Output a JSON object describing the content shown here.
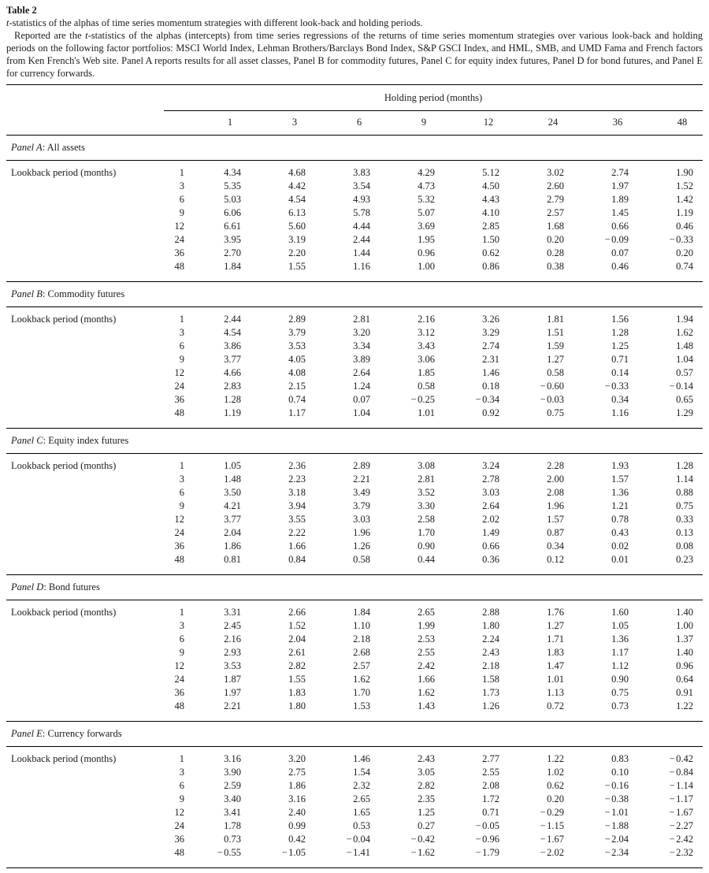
{
  "header": {
    "title": "Table 2",
    "subtitle_segments": [
      {
        "t": "t",
        "i": true
      },
      {
        "t": "-statistics of the alphas of time series momentum strategies with different look-back and holding periods.",
        "i": false
      }
    ],
    "description_segments": [
      {
        "t": "Reported are the ",
        "i": false
      },
      {
        "t": "t",
        "i": true
      },
      {
        "t": "-statistics of the alphas (intercepts) from time series regressions of the returns of time series momentum strategies over various look-back and holding periods on the following factor portfolios: MSCI World Index, Lehman Brothers/Barclays Bond Index, S&P GSCI Index, and HML, SMB, and UMD Fama and French factors from Ken French's Web site. Panel A reports results for all asset classes, Panel B for commodity futures, Panel C for equity index futures, Panel D for bond futures, and Panel E for currency forwards.",
        "i": false
      }
    ]
  },
  "table": {
    "holding_period_label": "Holding period (months)",
    "holding_periods": [
      "1",
      "3",
      "6",
      "9",
      "12",
      "24",
      "36",
      "48"
    ],
    "lookback_label": "Lookback period (months)",
    "lookback_periods": [
      "1",
      "3",
      "6",
      "9",
      "12",
      "24",
      "36",
      "48"
    ],
    "panels": [
      {
        "name": "Panel A",
        "title": "All assets",
        "rows": [
          [
            4.34,
            4.68,
            3.83,
            4.29,
            5.12,
            3.02,
            2.74,
            1.9
          ],
          [
            5.35,
            4.42,
            3.54,
            4.73,
            4.5,
            2.6,
            1.97,
            1.52
          ],
          [
            5.03,
            4.54,
            4.93,
            5.32,
            4.43,
            2.79,
            1.89,
            1.42
          ],
          [
            6.06,
            6.13,
            5.78,
            5.07,
            4.1,
            2.57,
            1.45,
            1.19
          ],
          [
            6.61,
            5.6,
            4.44,
            3.69,
            2.85,
            1.68,
            0.66,
            0.46
          ],
          [
            3.95,
            3.19,
            2.44,
            1.95,
            1.5,
            0.2,
            -0.09,
            -0.33
          ],
          [
            2.7,
            2.2,
            1.44,
            0.96,
            0.62,
            0.28,
            0.07,
            0.2
          ],
          [
            1.84,
            1.55,
            1.16,
            1.0,
            0.86,
            0.38,
            0.46,
            0.74
          ]
        ]
      },
      {
        "name": "Panel B",
        "title": "Commodity futures",
        "rows": [
          [
            2.44,
            2.89,
            2.81,
            2.16,
            3.26,
            1.81,
            1.56,
            1.94
          ],
          [
            4.54,
            3.79,
            3.2,
            3.12,
            3.29,
            1.51,
            1.28,
            1.62
          ],
          [
            3.86,
            3.53,
            3.34,
            3.43,
            2.74,
            1.59,
            1.25,
            1.48
          ],
          [
            3.77,
            4.05,
            3.89,
            3.06,
            2.31,
            1.27,
            0.71,
            1.04
          ],
          [
            4.66,
            4.08,
            2.64,
            1.85,
            1.46,
            0.58,
            0.14,
            0.57
          ],
          [
            2.83,
            2.15,
            1.24,
            0.58,
            0.18,
            -0.6,
            -0.33,
            -0.14
          ],
          [
            1.28,
            0.74,
            0.07,
            -0.25,
            -0.34,
            -0.03,
            0.34,
            0.65
          ],
          [
            1.19,
            1.17,
            1.04,
            1.01,
            0.92,
            0.75,
            1.16,
            1.29
          ]
        ]
      },
      {
        "name": "Panel C",
        "title": "Equity index futures",
        "rows": [
          [
            1.05,
            2.36,
            2.89,
            3.08,
            3.24,
            2.28,
            1.93,
            1.28
          ],
          [
            1.48,
            2.23,
            2.21,
            2.81,
            2.78,
            2.0,
            1.57,
            1.14
          ],
          [
            3.5,
            3.18,
            3.49,
            3.52,
            3.03,
            2.08,
            1.36,
            0.88
          ],
          [
            4.21,
            3.94,
            3.79,
            3.3,
            2.64,
            1.96,
            1.21,
            0.75
          ],
          [
            3.77,
            3.55,
            3.03,
            2.58,
            2.02,
            1.57,
            0.78,
            0.33
          ],
          [
            2.04,
            2.22,
            1.96,
            1.7,
            1.49,
            0.87,
            0.43,
            0.13
          ],
          [
            1.86,
            1.66,
            1.26,
            0.9,
            0.66,
            0.34,
            0.02,
            0.08
          ],
          [
            0.81,
            0.84,
            0.58,
            0.44,
            0.36,
            0.12,
            0.01,
            0.23
          ]
        ]
      },
      {
        "name": "Panel D",
        "title": "Bond futures",
        "rows": [
          [
            3.31,
            2.66,
            1.84,
            2.65,
            2.88,
            1.76,
            1.6,
            1.4
          ],
          [
            2.45,
            1.52,
            1.1,
            1.99,
            1.8,
            1.27,
            1.05,
            1.0
          ],
          [
            2.16,
            2.04,
            2.18,
            2.53,
            2.24,
            1.71,
            1.36,
            1.37
          ],
          [
            2.93,
            2.61,
            2.68,
            2.55,
            2.43,
            1.83,
            1.17,
            1.4
          ],
          [
            3.53,
            2.82,
            2.57,
            2.42,
            2.18,
            1.47,
            1.12,
            0.96
          ],
          [
            1.87,
            1.55,
            1.62,
            1.66,
            1.58,
            1.01,
            0.9,
            0.64
          ],
          [
            1.97,
            1.83,
            1.7,
            1.62,
            1.73,
            1.13,
            0.75,
            0.91
          ],
          [
            2.21,
            1.8,
            1.53,
            1.43,
            1.26,
            0.72,
            0.73,
            1.22
          ]
        ]
      },
      {
        "name": "Panel E",
        "title": "Currency forwards",
        "rows": [
          [
            3.16,
            3.2,
            1.46,
            2.43,
            2.77,
            1.22,
            0.83,
            -0.42
          ],
          [
            3.9,
            2.75,
            1.54,
            3.05,
            2.55,
            1.02,
            0.1,
            -0.84
          ],
          [
            2.59,
            1.86,
            2.32,
            2.82,
            2.08,
            0.62,
            -0.16,
            -1.14
          ],
          [
            3.4,
            3.16,
            2.65,
            2.35,
            1.72,
            0.2,
            -0.38,
            -1.17
          ],
          [
            3.41,
            2.4,
            1.65,
            1.25,
            0.71,
            -0.29,
            -1.01,
            -1.67
          ],
          [
            1.78,
            0.99,
            0.53,
            0.27,
            -0.05,
            -1.15,
            -1.88,
            -2.27
          ],
          [
            0.73,
            0.42,
            -0.04,
            -0.42,
            -0.96,
            -1.67,
            -2.04,
            -2.42
          ],
          [
            -0.55,
            -1.05,
            -1.41,
            -1.62,
            -1.79,
            -2.02,
            -2.34,
            -2.32
          ]
        ]
      }
    ]
  }
}
